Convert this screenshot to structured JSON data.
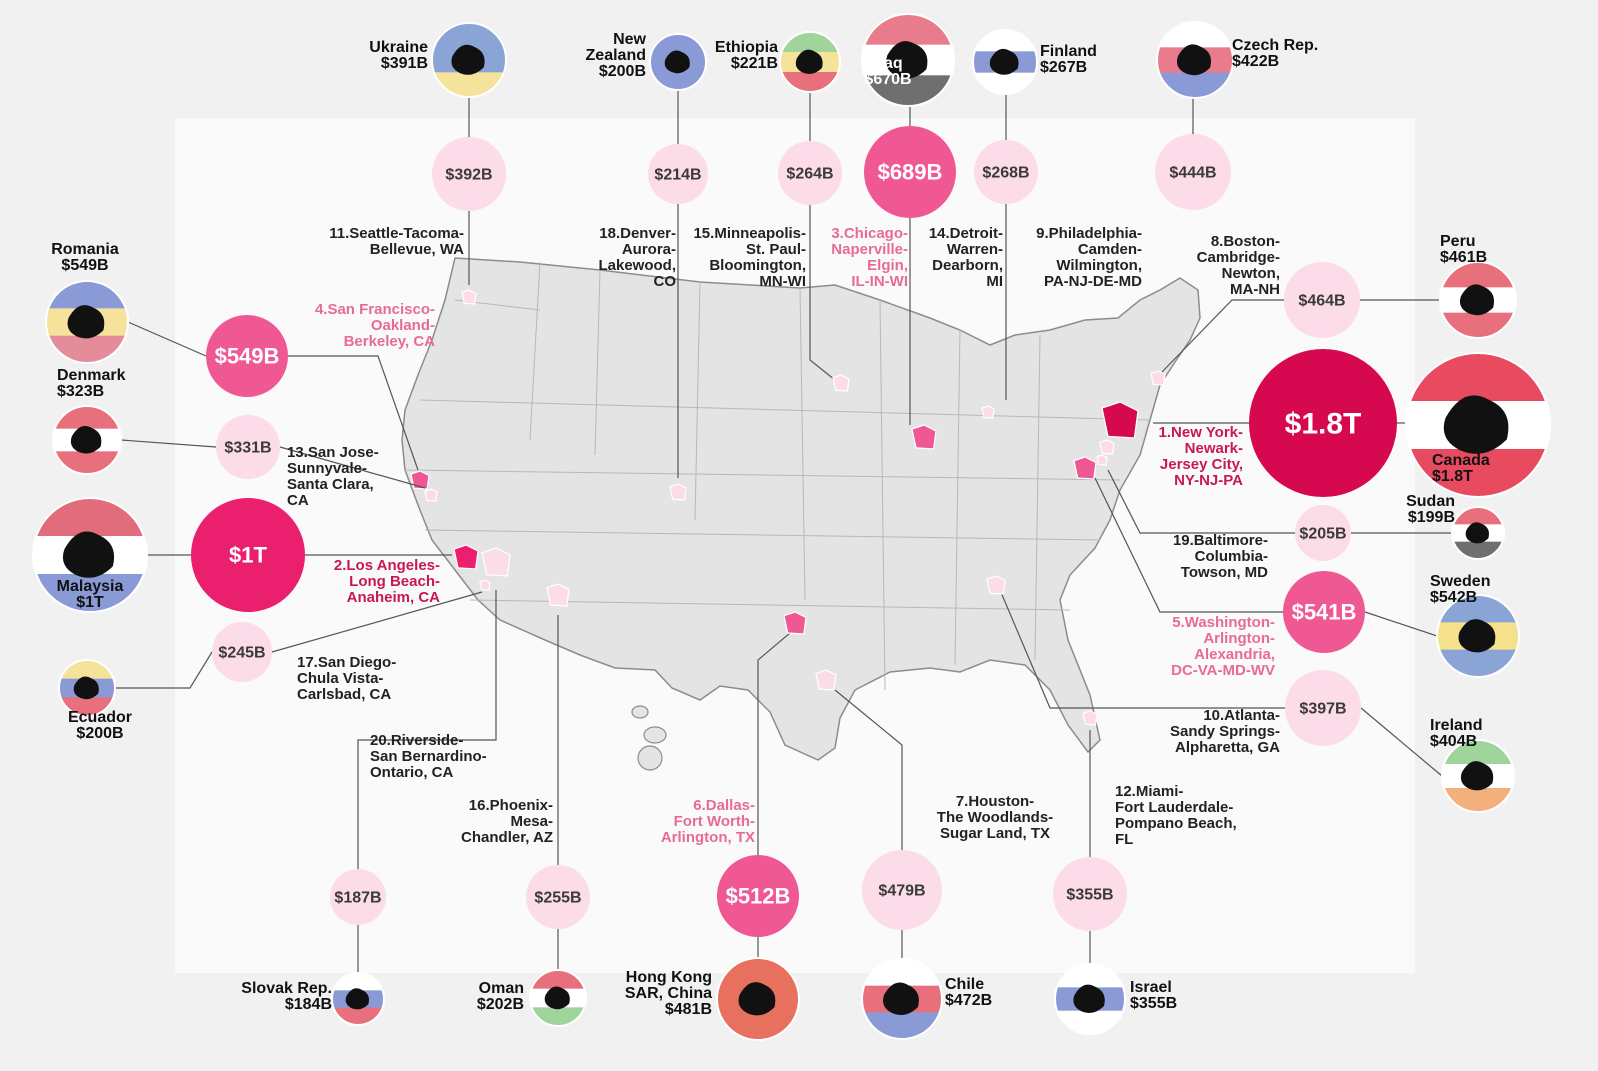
{
  "colors": {
    "tier1": "#d6084f",
    "tier2": "#ea1f6e",
    "tier3": "#f05894",
    "tier4": "#f8b2cc",
    "tier5": "#fcdce8",
    "text_dark": "#222222",
    "text_pink": "#e86a9a",
    "text_magenta": "#c8194f",
    "map_fill": "#e4e4e4",
    "map_stroke": "#8c8c8c"
  },
  "metros": [
    {
      "id": "new-york",
      "rank": "1",
      "label": "1.New York-\nNewark-\nJersey City,\nNY-NJ-PA",
      "gdp": "$1.8T",
      "country": "Canada",
      "country_gdp": "$1.8T",
      "flag": "canada-flag",
      "tier": "tier1",
      "label_color": "text_magenta"
    },
    {
      "id": "los-angeles",
      "rank": "2",
      "label": "2.Los Angeles-\nLong Beach-\nAnaheim, CA",
      "gdp": "$1T",
      "country": "Malaysia",
      "country_gdp": "$1T",
      "flag": "malaysia-flag",
      "tier": "tier2",
      "label_color": "text_magenta"
    },
    {
      "id": "chicago",
      "rank": "3",
      "label": "3.Chicago-\nNaperville-\nElgin,\nIL-IN-WI",
      "gdp": "$689B",
      "country": "Iraq",
      "country_gdp": "$670B",
      "flag": "iraq-flag",
      "tier": "tier3",
      "label_color": "text_pink"
    },
    {
      "id": "san-francisco",
      "rank": "4",
      "label": "4.San Francisco-\nOakland-\nBerkeley, CA",
      "gdp": "$549B",
      "country": "Romania",
      "country_gdp": "$549B",
      "flag": "romania-flag",
      "tier": "tier3",
      "label_color": "text_pink"
    },
    {
      "id": "washington",
      "rank": "5",
      "label": "5.Washington-\nArlington-\nAlexandria,\nDC-VA-MD-WV",
      "gdp": "$541B",
      "country": "Sweden",
      "country_gdp": "$542B",
      "flag": "sweden-flag",
      "tier": "tier3",
      "label_color": "text_pink"
    },
    {
      "id": "dallas",
      "rank": "6",
      "label": "6.Dallas-\nFort Worth-\nArlington, TX",
      "gdp": "$512B",
      "country": "Hong Kong\nSAR, China",
      "country_gdp": "$481B",
      "flag": "hong-kong-flag",
      "tier": "tier3",
      "label_color": "text_pink"
    },
    {
      "id": "houston",
      "rank": "7",
      "label": "7.Houston-\nThe Woodlands-\nSugar Land, TX",
      "gdp": "$479B",
      "country": "Chile",
      "country_gdp": "$472B",
      "flag": "chile-flag",
      "tier": "tier5",
      "label_color": "text_dark"
    },
    {
      "id": "boston",
      "rank": "8",
      "label": "8.Boston-\nCambridge-\nNewton,\nMA-NH",
      "gdp": "$464B",
      "country": "Peru",
      "country_gdp": "$461B",
      "flag": "peru-flag",
      "tier": "tier5",
      "label_color": "text_dark"
    },
    {
      "id": "philadelphia",
      "rank": "9",
      "label": "9.Philadelphia-\nCamden-\nWilmington,\nPA-NJ-DE-MD",
      "gdp": "$444B",
      "country": "Czech Rep.",
      "country_gdp": "$422B",
      "flag": "czech-flag",
      "tier": "tier5",
      "label_color": "text_dark"
    },
    {
      "id": "atlanta",
      "rank": "10",
      "label": "10.Atlanta-\nSandy Springs-\nAlpharetta, GA",
      "gdp": "$397B",
      "country": "Ireland",
      "country_gdp": "$404B",
      "flag": "ireland-flag",
      "tier": "tier5",
      "label_color": "text_dark"
    },
    {
      "id": "seattle",
      "rank": "11",
      "label": "11.Seattle-Tacoma-\nBellevue, WA",
      "gdp": "$392B",
      "country": "Ukraine",
      "country_gdp": "$391B",
      "flag": "ukraine-flag",
      "tier": "tier5",
      "label_color": "text_dark"
    },
    {
      "id": "miami",
      "rank": "12",
      "label": "12.Miami-\nFort Lauderdale-\nPompano Beach,\nFL",
      "gdp": "$355B",
      "country": "Israel",
      "country_gdp": "$355B",
      "flag": "israel-flag",
      "tier": "tier5",
      "label_color": "text_dark"
    },
    {
      "id": "san-jose",
      "rank": "13",
      "label": "13.San Jose-\nSunnyvale-\nSanta Clara,\nCA",
      "gdp": "$331B",
      "country": "Denmark",
      "country_gdp": "$323B",
      "flag": "denmark-flag",
      "tier": "tier5",
      "label_color": "text_dark"
    },
    {
      "id": "detroit",
      "rank": "14",
      "label": "14.Detroit-\nWarren-\nDearborn,\nMI",
      "gdp": "$268B",
      "country": "Finland",
      "country_gdp": "$267B",
      "flag": "finland-flag",
      "tier": "tier5",
      "label_color": "text_dark"
    },
    {
      "id": "minneapolis",
      "rank": "15",
      "label": "15.Minneapolis-\nSt. Paul-\nBloomington,\nMN-WI",
      "gdp": "$264B",
      "country": "Ethiopia",
      "country_gdp": "$221B",
      "flag": "ethiopia-flag",
      "tier": "tier5",
      "label_color": "text_dark"
    },
    {
      "id": "phoenix",
      "rank": "16",
      "label": "16.Phoenix-\nMesa-\nChandler, AZ",
      "gdp": "$255B",
      "country": "Oman",
      "country_gdp": "$202B",
      "flag": "oman-flag",
      "tier": "tier5",
      "label_color": "text_dark"
    },
    {
      "id": "san-diego",
      "rank": "17",
      "label": "17.San Diego-\nChula Vista-\nCarlsbad, CA",
      "gdp": "$245B",
      "country": "Ecuador",
      "country_gdp": "$200B",
      "flag": "ecuador-flag",
      "tier": "tier5",
      "label_color": "text_dark"
    },
    {
      "id": "denver",
      "rank": "18",
      "label": "18.Denver-\nAurora-\nLakewood,\nCO",
      "gdp": "$214B",
      "country": "New\nZealand",
      "country_gdp": "$200B",
      "flag": "new-zealand-flag",
      "tier": "tier5",
      "label_color": "text_dark"
    },
    {
      "id": "baltimore",
      "rank": "19",
      "label": "19.Baltimore-\nColumbia-\nTowson, MD",
      "gdp": "$205B",
      "country": "Sudan",
      "country_gdp": "$199B",
      "flag": "sudan-flag",
      "tier": "tier5",
      "label_color": "text_dark"
    },
    {
      "id": "riverside",
      "rank": "20",
      "label": "20.Riverside-\nSan Bernardino-\nOntario, CA",
      "gdp": "$187B",
      "country": "Slovak Rep.",
      "country_gdp": "$184B",
      "flag": "slovakia-flag",
      "tier": "tier5",
      "label_color": "text_dark"
    }
  ]
}
